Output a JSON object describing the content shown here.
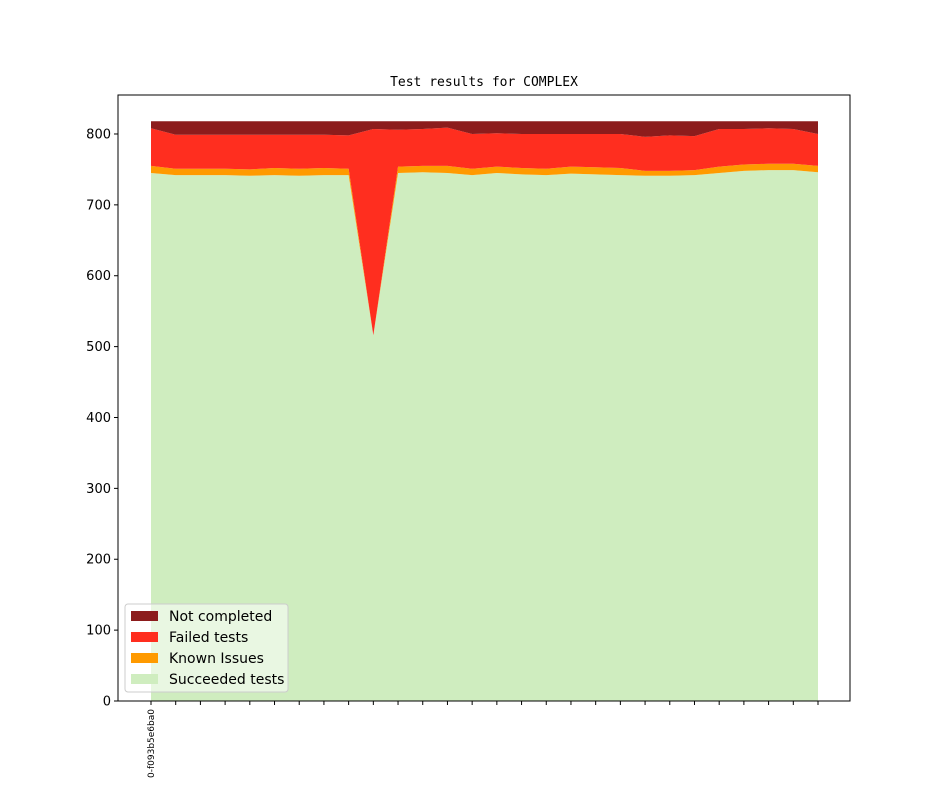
{
  "chart_data": {
    "type": "area",
    "title": "Test results for COMPLEX",
    "xlabel": "",
    "ylabel": "",
    "ylim": [
      0,
      855
    ],
    "yticks": [
      0,
      100,
      200,
      300,
      400,
      500,
      600,
      700,
      800
    ],
    "x_tick_count": 28,
    "x_tick_labels": [
      "0-f093b5e6ba0"
    ],
    "stacked": true,
    "legend_position": "lower-left",
    "grid": false,
    "series": [
      {
        "name": "Succeeded tests",
        "color": "#cfedbf",
        "values": [
          745,
          742,
          742,
          742,
          741,
          742,
          741,
          742,
          742,
          516,
          745,
          746,
          745,
          742,
          745,
          743,
          742,
          744,
          743,
          742,
          741,
          741,
          742,
          745,
          748,
          749,
          749,
          746
        ]
      },
      {
        "name": "Known Issues",
        "color": "#ff9a00",
        "values": [
          10,
          9,
          9,
          9,
          9,
          10,
          10,
          10,
          9,
          0,
          9,
          9,
          10,
          9,
          9,
          9,
          9,
          10,
          10,
          10,
          7,
          7,
          7,
          9,
          9,
          9,
          9,
          9
        ]
      },
      {
        "name": "Failed tests",
        "color": "#ff2e1f",
        "values": [
          53,
          48,
          48,
          48,
          49,
          47,
          48,
          47,
          47,
          291,
          52,
          52,
          54,
          49,
          47,
          48,
          49,
          46,
          47,
          48,
          48,
          50,
          48,
          53,
          50,
          50,
          49,
          45
        ]
      },
      {
        "name": "Not completed",
        "color": "#8c1c1c",
        "values": [
          10,
          19,
          19,
          19,
          19,
          19,
          19,
          19,
          20,
          11,
          12,
          11,
          9,
          18,
          17,
          18,
          18,
          18,
          18,
          18,
          22,
          20,
          21,
          11,
          11,
          10,
          11,
          18
        ]
      }
    ],
    "legend_order": [
      "Not completed",
      "Failed tests",
      "Known Issues",
      "Succeeded tests"
    ]
  }
}
